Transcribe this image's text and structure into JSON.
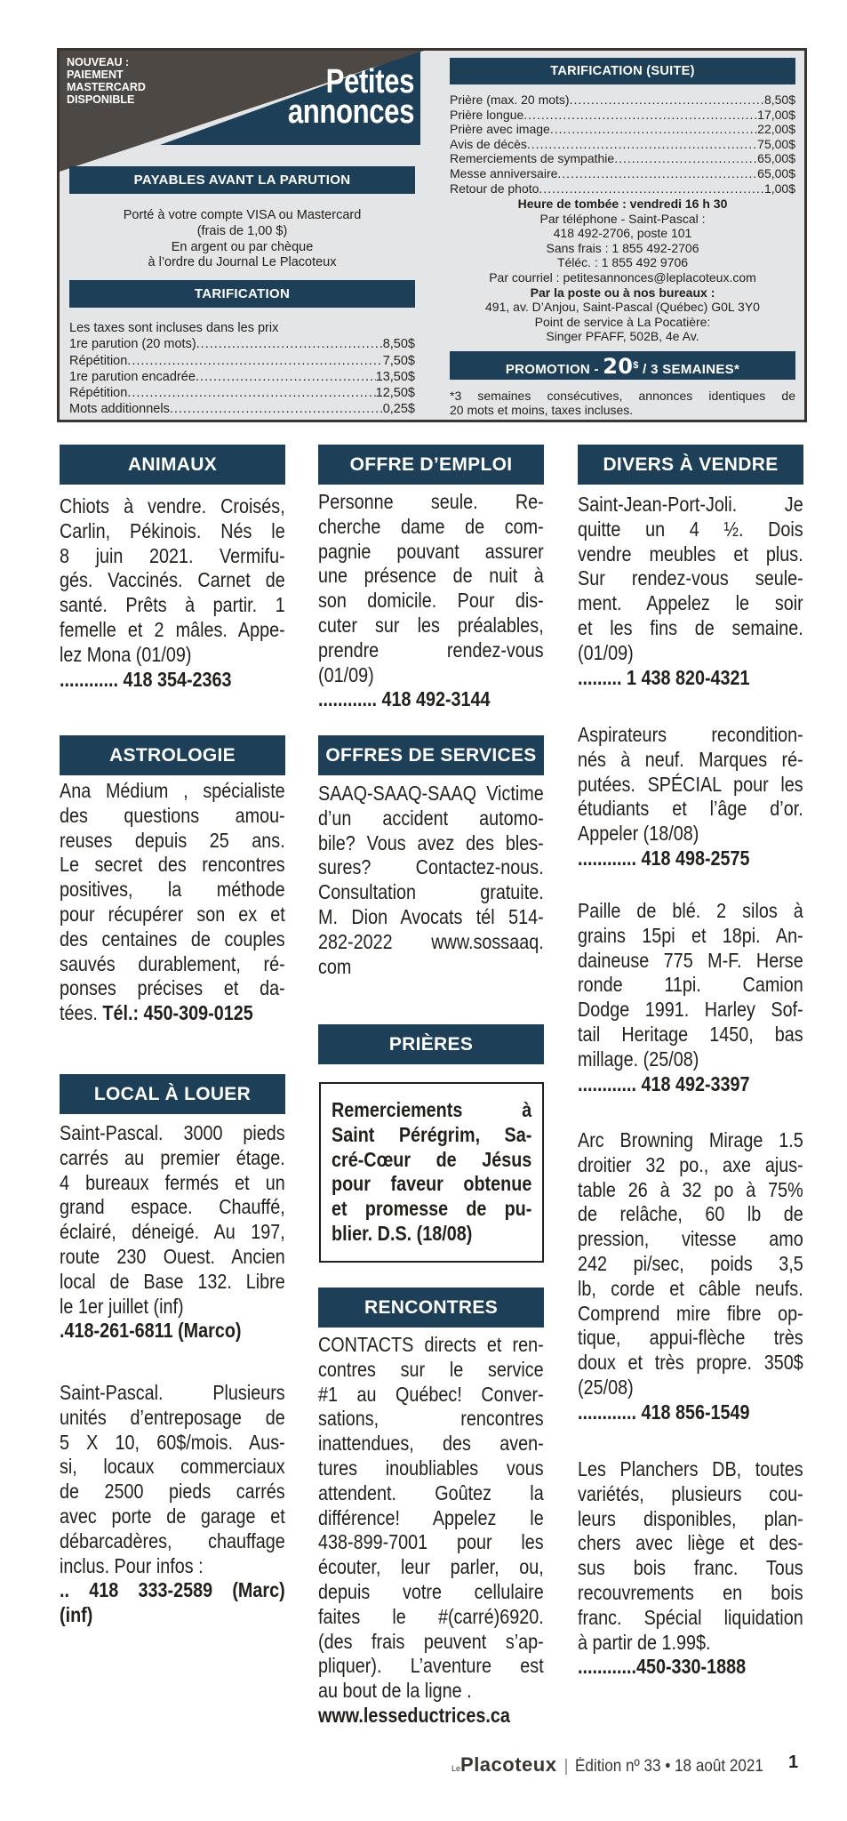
{
  "header": {
    "notice": [
      "NOUVEAU :",
      "PAIEMENT",
      "MASTERCARD",
      "DISPONIBLE"
    ],
    "title": [
      "Petites",
      "annonces"
    ],
    "payables_title": "PAYABLES AVANT LA PARUTION",
    "payment_lines": [
      "Porté à votre compte VISA ou Mastercard",
      "(frais de 1,00 $)",
      "En argent ou par chèque",
      "à l’ordre du Journal Le Placoteux"
    ],
    "tarification_title": "TARIFICATION",
    "taxes_note": "Les taxes sont incluses dans les prix",
    "rates": [
      {
        "label": "1re parution (20 mots) ",
        "price": "8,50$"
      },
      {
        "label": "Répétition",
        "price": "7,50$"
      },
      {
        "label": "1re parution encadrée ",
        "price": "13,50$"
      },
      {
        "label": "Répétition",
        "price": "12,50$"
      },
      {
        "label": "Mots additionnels ",
        "price": "0,25$"
      }
    ],
    "suite_title": "TARIFICATION (SUITE)",
    "suite_rates": [
      {
        "label": "Prière (max. 20 mots)",
        "price": "8,50$"
      },
      {
        "label": "Prière longue ",
        "price": "17,00$"
      },
      {
        "label": "Prière avec image",
        "price": "22,00$"
      },
      {
        "label": "Avis de décès ",
        "price": "75,00$"
      },
      {
        "label": "Remerciements de sympathie ",
        "price": "65,00$"
      },
      {
        "label": "Messe anniversaire",
        "price": "65,00$"
      },
      {
        "label": "Retour de photo ",
        "price": "1,00$"
      }
    ],
    "contact_lines": [
      {
        "text": "Heure de tombée : vendredi 16 h 30",
        "bold": true
      },
      {
        "text": "Par téléphone - Saint-Pascal :",
        "bold": false
      },
      {
        "text": "418 492-2706, poste 101",
        "bold": false
      },
      {
        "text": "Sans frais : 1 855 492-2706",
        "bold": false
      },
      {
        "text": "Téléc. : 1 855 492 9706",
        "bold": false
      },
      {
        "text": "Par courriel : petitesannonces@leplacoteux.com",
        "bold": false
      },
      {
        "text": "Par la poste ou à nos bureaux :",
        "bold": true
      },
      {
        "text": "491, av. D’Anjou, Saint-Pascal (Québec) G0L 3Y0",
        "bold": false
      },
      {
        "text": "Point de service à La Pocatière:",
        "bold": false
      },
      {
        "text": "Singer PFAFF, 502B, 4e Av.",
        "bold": false
      }
    ],
    "promo": {
      "prefix": "PROMOTION - ",
      "amount": "20",
      "currency": "$",
      "suffix": " / 3 SEMAINES*"
    },
    "footnote": [
      "*3 semaines consécutives, annonces identiques de",
      "20 mots et moins, taxes incluses."
    ]
  },
  "columns": [
    {
      "sections": [
        {
          "title": "ANIMAUX",
          "ads": [
            {
              "lines": [
                "Chiots à vendre. Croisés,",
                "Carlin, Pékinois. Nés le",
                "8 juin 2021. Vermifu-",
                "gés. Vaccinés. Carnet de",
                "santé. Prêts à partir. 1",
                "femelle et 2 mâles. Appe-",
                "lez Mona (01/09)"
              ],
              "phone": [
                "............ 418 354-2363"
              ]
            }
          ]
        },
        {
          "title": "ASTROLOGIE",
          "ads": [
            {
              "lines": [
                "Ana Médium , spécialiste",
                "des questions amou-",
                "reuses depuis 25 ans.",
                "Le secret des rencontres",
                "positives, la méthode",
                "pour récupérer son ex et",
                "des centaines de couples",
                "sauvés durablement, ré-",
                "ponses précises et da-",
                "tées. "
              ],
              "phone_inline": "Tél.: 450-309-0125"
            }
          ]
        },
        {
          "title": "LOCAL À LOUER",
          "ads": [
            {
              "lines": [
                "Saint-Pascal. 3000 pieds",
                "carrés au premier étage.",
                "4 bureaux fermés et un",
                "grand espace. Chauffé,",
                "éclairé, déneigé. Au 197,",
                "route 230 Ouest. Ancien",
                "local de Base 132. Libre",
                "le 1er juillet (inf)"
              ],
              "phone": [
                ".418-261-6811 (Marco)"
              ]
            },
            {
              "lines": [
                "Saint-Pascal. Plusieurs",
                "unités d’entreposage de",
                "5 X 10, 60$/mois. Aus-",
                "si, locaux commerciaux",
                "de 2500 pieds carrés",
                "avec porte de garage et",
                "débarcadères, chauffage",
                "inclus. Pour infos :"
              ],
              "phone": [
                ".. 418 333-2589 (Marc)",
                "(inf)"
              ]
            }
          ]
        }
      ]
    },
    {
      "sections": [
        {
          "title": "OFFRE D’EMPLOI",
          "ads": [
            {
              "lines": [
                "Personne seule. Re-",
                "cherche dame de com-",
                "pagnie pouvant assurer",
                "une présence de nuit à",
                "son domicile. Pour dis-",
                "cuter sur les préalables,",
                "prendre rendez-vous",
                "(01/09)"
              ],
              "phone": [
                "............ 418 492-3144"
              ]
            }
          ]
        },
        {
          "title": "OFFRES DE SERVICES",
          "ads": [
            {
              "lines": [
                "SAAQ-SAAQ-SAAQ Victime",
                "d’un accident automo-",
                "bile? Vous avez des bles-",
                "sures? Contactez-nous.",
                "Consultation gratuite.",
                "M. Dion Avocats tél 514-",
                "282-2022 www.sossaaq.",
                "com"
              ]
            }
          ]
        },
        {
          "title": "PRIÈRES",
          "boxed": [
            "Remerciements à",
            "Saint Pérégrim, Sa-",
            "cré-Cœur de Jésus",
            "pour faveur obtenue",
            "et promesse de pu-",
            "blier. D.S. (18/08)"
          ]
        },
        {
          "title": "RENCONTRES",
          "ads": [
            {
              "lines": [
                "CONTACTS directs et ren-",
                "contres sur le service",
                "#1 au Québec! Conver-",
                "sations, rencontres",
                "inattendues, des aven-",
                "tures inoubliables vous",
                "attendent. Goûtez la",
                "différence! Appelez le",
                "438-899-7001 pour les",
                "écouter, leur parler, ou,",
                "depuis votre cellulaire",
                "faites le #(carré)6920.",
                "(des frais peuvent s’ap-",
                "pliquer). L’aventure est",
                "au bout de la ligne ."
              ],
              "phone": [
                "www.lesseductrices.ca"
              ]
            }
          ]
        }
      ]
    },
    {
      "sections": [
        {
          "title": "DIVERS À VENDRE",
          "ads": [
            {
              "lines": [
                "Saint-Jean-Port-Joli. Je",
                "quitte un 4 ½. Dois",
                "vendre meubles et plus.",
                "Sur rendez-vous seule-",
                "ment. Appelez le soir",
                "et les fins de semaine.",
                "(01/09)"
              ],
              "phone": [
                "......... 1 438 820-4321"
              ]
            },
            {
              "lines": [
                "Aspirateurs recondition-",
                "nés à neuf. Marques ré-",
                "putées. SPÉCIAL pour les",
                "étudiants et l’âge d’or.",
                "Appeler (18/08)"
              ],
              "phone": [
                "............ 418 498-2575"
              ]
            },
            {
              "lines": [
                "Paille de blé. 2 silos à",
                "grains 15pi et 18pi. An-",
                "daineuse 775 M-F. Herse",
                "ronde 11pi. Camion",
                "Dodge 1991. Harley Sof-",
                "tail Heritage 1450, bas",
                "millage. (25/08)"
              ],
              "phone": [
                "............ 418 492-3397"
              ]
            },
            {
              "lines": [
                "Arc Browning Mirage 1.5",
                "droitier 32 po., axe ajus-",
                "table 26 à 32 po à 75%",
                "de relâche, 60 lb de",
                "pression, vitesse amo",
                "242 pi/sec, poids 3,5",
                "lb, corde et câble neufs.",
                "Comprend mire fibre op-",
                "tique, appui-flèche très",
                "doux et très propre. 350$",
                "(25/08)"
              ],
              "phone": [
                "............ 418 856-1549"
              ]
            },
            {
              "lines": [
                "Les Planchers DB, toutes",
                "variétés, plusieurs cou-",
                "leurs disponibles, plan-",
                "chers avec liège et des-",
                "sus bois franc. Tous",
                "recouvrements en bois",
                "franc. Spécial liquidation",
                "à partir de 1.99$."
              ],
              "phone": [
                "............450-330-1888"
              ]
            }
          ]
        }
      ]
    }
  ],
  "footer": {
    "logo_small": "Le",
    "logo": "Placoteux",
    "separator": "|",
    "edition": "Édition nº 33 • 18 août 2021",
    "page": "1"
  },
  "colors": {
    "navy": "#1d3f57",
    "dark_gray": "#4d4843",
    "panel": "#e4e5e7",
    "text": "#231f1a"
  }
}
